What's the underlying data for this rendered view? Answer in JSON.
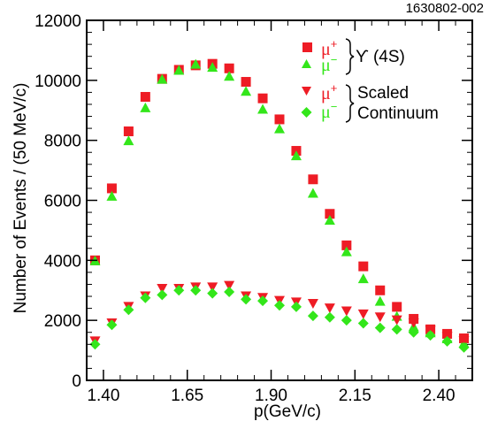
{
  "figure_id": "1630802-002",
  "colors": {
    "mu_plus": "#ee1c25",
    "mu_minus": "#33e61a",
    "axis": "#000000"
  },
  "chart_data": {
    "type": "scatter",
    "title": "",
    "xlabel": "p(GeV/c)",
    "ylabel": "Number of Events / (50 MeV/c)",
    "xlim": [
      1.35,
      2.5
    ],
    "ylim": [
      0,
      12000
    ],
    "x_ticks": [
      1.4,
      1.65,
      1.9,
      2.15,
      2.4
    ],
    "x_tick_labels": [
      "1.40",
      "1.65",
      "1.90",
      "2.15",
      "2.40"
    ],
    "y_ticks": [
      0,
      2000,
      4000,
      6000,
      8000,
      10000,
      12000
    ],
    "y_tick_labels": [
      "0",
      "2000",
      "4000",
      "6000",
      "8000",
      "10000",
      "12000"
    ],
    "grid": false,
    "legend_groups": [
      {
        "mu": "μ",
        "sup_plus": "+",
        "sup_minus": "−",
        "label": "ϒ (4S)",
        "label_line2": ""
      },
      {
        "mu": "μ",
        "sup_plus": "+",
        "sup_minus": "−",
        "label": "Scaled",
        "label_line2": "Continuum"
      }
    ],
    "series": [
      {
        "marker": "square",
        "color": "#ee1c25",
        "x": [
          1.375,
          1.425,
          1.475,
          1.525,
          1.575,
          1.625,
          1.675,
          1.725,
          1.775,
          1.825,
          1.875,
          1.925,
          1.975,
          2.025,
          2.075,
          2.125,
          2.175,
          2.225,
          2.275,
          2.325,
          2.375,
          2.425,
          2.475
        ],
        "y": [
          4000,
          6400,
          8300,
          9450,
          10050,
          10350,
          10500,
          10550,
          10400,
          9950,
          9400,
          8700,
          7650,
          6700,
          5550,
          4500,
          3800,
          3000,
          2450,
          2050,
          1700,
          1550,
          1400
        ]
      },
      {
        "marker": "triangle-up",
        "color": "#33e61a",
        "x": [
          1.375,
          1.425,
          1.475,
          1.525,
          1.575,
          1.625,
          1.675,
          1.725,
          1.775,
          1.825,
          1.875,
          1.925,
          1.975,
          2.025,
          2.075,
          2.125,
          2.175,
          2.225,
          2.275,
          2.325,
          2.375,
          2.425,
          2.475
        ],
        "y": [
          4000,
          6150,
          8000,
          9100,
          10050,
          10350,
          10550,
          10450,
          10150,
          9650,
          9050,
          8400,
          7500,
          6250,
          5350,
          4300,
          3400,
          2650,
          2150,
          1800,
          1600,
          1400,
          1250
        ]
      },
      {
        "marker": "triangle-down",
        "color": "#ee1c25",
        "x": [
          1.375,
          1.425,
          1.475,
          1.525,
          1.575,
          1.625,
          1.675,
          1.725,
          1.775,
          1.825,
          1.875,
          1.925,
          1.975,
          2.025,
          2.075,
          2.125,
          2.175,
          2.225,
          2.275,
          2.325,
          2.375,
          2.425,
          2.475
        ],
        "y": [
          1300,
          1900,
          2450,
          2800,
          3050,
          3050,
          3100,
          3100,
          3150,
          2800,
          2750,
          2650,
          2600,
          2550,
          2400,
          2300,
          2200,
          2100,
          2000,
          1900,
          1650,
          1450,
          1300
        ]
      },
      {
        "marker": "diamond",
        "color": "#33e61a",
        "x": [
          1.375,
          1.425,
          1.475,
          1.525,
          1.575,
          1.625,
          1.675,
          1.725,
          1.775,
          1.825,
          1.875,
          1.925,
          1.975,
          2.025,
          2.075,
          2.125,
          2.175,
          2.225,
          2.275,
          2.325,
          2.375,
          2.425,
          2.475
        ],
        "y": [
          1200,
          1850,
          2350,
          2750,
          2850,
          3000,
          3000,
          2900,
          2950,
          2700,
          2650,
          2500,
          2450,
          2150,
          2100,
          2000,
          1900,
          1750,
          1700,
          1600,
          1500,
          1300,
          1100
        ]
      }
    ]
  }
}
